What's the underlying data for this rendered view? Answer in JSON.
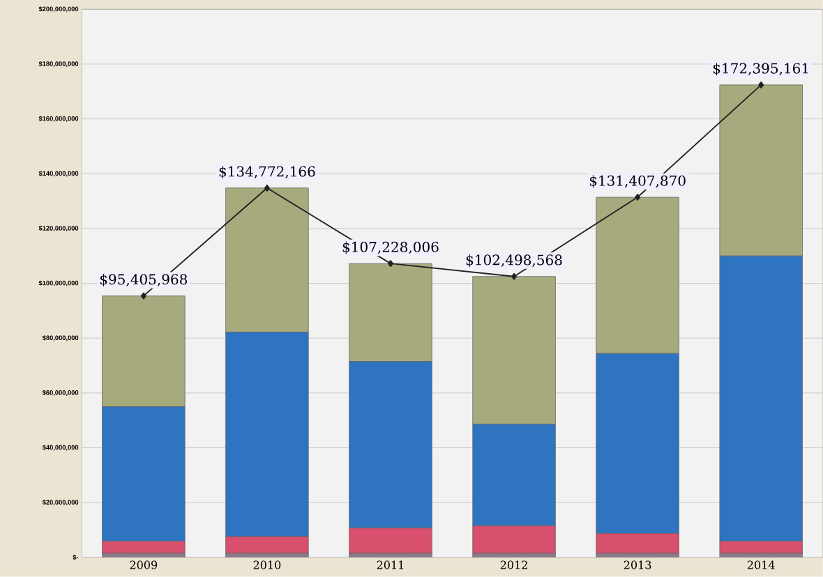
{
  "chart_data": {
    "type": "bar",
    "stacked": true,
    "grid": "y",
    "categories": [
      "2009",
      "2010",
      "2011",
      "2012",
      "2013",
      "2014"
    ],
    "series": [
      {
        "color": "#8a7a8c",
        "values": [
          1500000,
          1500000,
          1500000,
          1500000,
          1500000,
          1500000
        ]
      },
      {
        "color": "#d94f6e",
        "values": [
          4400000,
          6100000,
          9200000,
          10000000,
          7200000,
          4400000
        ]
      },
      {
        "color": "#2f74c0",
        "values": [
          49100000,
          74600000,
          60800000,
          37100000,
          65700000,
          104100000
        ]
      },
      {
        "color": "#a7aa7c",
        "values": [
          40400000,
          52600000,
          35700000,
          53900000,
          57000000,
          62400000
        ]
      },
      {
        "type": "line",
        "color": "#222222",
        "marker": "diamond",
        "values": [
          95405968,
          134772166,
          107228006,
          102498568,
          131407870,
          172395161
        ],
        "value_labels": [
          "$95,405,968",
          "$134,772,166",
          "$107,228,006",
          "$102,498,568",
          "$131,407,870",
          "$172,395,161"
        ]
      }
    ],
    "ylim": [
      0,
      200000000
    ],
    "yticks": [
      {
        "value": 0,
        "label": "$-"
      },
      {
        "value": 20000000,
        "label": "$20,000,000"
      },
      {
        "value": 40000000,
        "label": "$40,000,000"
      },
      {
        "value": 60000000,
        "label": "$60,000,000"
      },
      {
        "value": 80000000,
        "label": "$80,000,000"
      },
      {
        "value": 100000000,
        "label": "$100,000,000"
      },
      {
        "value": 120000000,
        "label": "$120,000,000"
      },
      {
        "value": 140000000,
        "label": "$140,000,000"
      },
      {
        "value": 160000000,
        "label": "$160,000,000"
      },
      {
        "value": 180000000,
        "label": "$180,000,000"
      },
      {
        "value": 200000000,
        "label": "$200,000,000"
      }
    ]
  }
}
